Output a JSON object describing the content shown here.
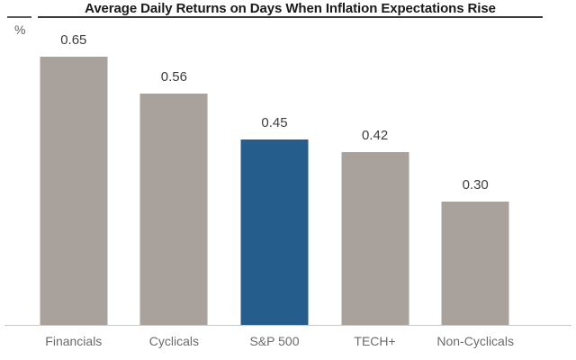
{
  "chart_data": {
    "type": "bar",
    "title": "Average Daily Returns on Days When Inflation Expectations Rise",
    "y_unit": "%",
    "categories": [
      "Financials",
      "Cyclicals",
      "S&P 500",
      "TECH+",
      "Non-Cyclicals"
    ],
    "values": [
      0.65,
      0.56,
      0.45,
      0.42,
      0.3
    ],
    "value_labels": [
      "0.65",
      "0.56",
      "0.45",
      "0.42",
      "0.30"
    ],
    "colors": [
      "#A9A29C",
      "#A9A29C",
      "#255E8C",
      "#A9A29C",
      "#A9A29C"
    ],
    "bar_color_default": "#A9A29C",
    "bar_color_highlight": "#255E8C",
    "highlighted_category": "S&P 500",
    "ylim": [
      0,
      0.7
    ],
    "gridlines": false,
    "legend": "none",
    "data_labels_position": "above bars"
  }
}
